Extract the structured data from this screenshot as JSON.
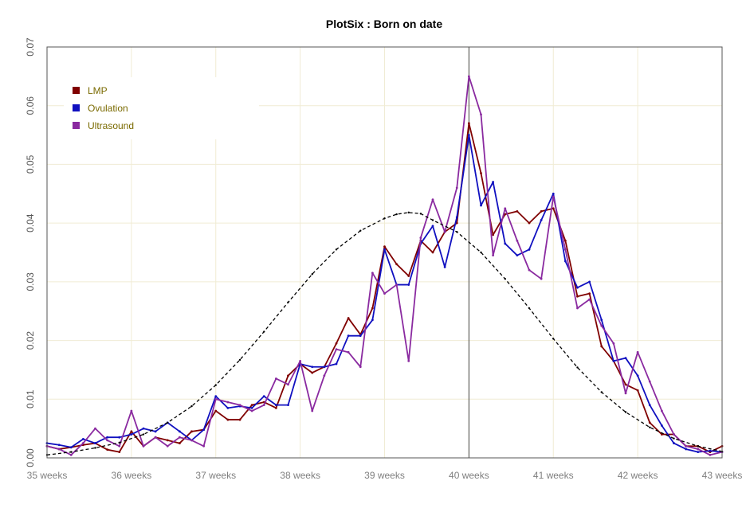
{
  "chart_data": {
    "type": "line",
    "title": "PlotSix : Born on date",
    "xlabel": "",
    "ylabel": "",
    "x_tick_labels": [
      "35 weeks",
      "36 weeks",
      "37 weeks",
      "38 weeks",
      "39 weeks",
      "40 weeks",
      "41 weeks",
      "42 weeks",
      "43 weeks"
    ],
    "x_ticks_days": [
      245,
      252,
      259,
      266,
      273,
      280,
      287,
      294,
      301
    ],
    "xlim_days": [
      245,
      301
    ],
    "y_tick_labels": [
      "0.00",
      "0.01",
      "0.02",
      "0.03",
      "0.04",
      "0.05",
      "0.06",
      "0.07"
    ],
    "y_ticks": [
      0,
      0.01,
      0.02,
      0.03,
      0.04,
      0.05,
      0.06,
      0.07
    ],
    "ylim": [
      0,
      0.07
    ],
    "grid": true,
    "grid_color": "#f0ecd4",
    "legend_position": "top-left",
    "vertical_reference_day": 280,
    "x_days": [
      245,
      246,
      247,
      248,
      249,
      250,
      251,
      252,
      253,
      254,
      255,
      256,
      257,
      258,
      259,
      260,
      261,
      262,
      263,
      264,
      265,
      266,
      267,
      268,
      269,
      270,
      271,
      272,
      273,
      274,
      275,
      276,
      277,
      278,
      279,
      280,
      281,
      282,
      283,
      284,
      285,
      286,
      287,
      288,
      289,
      290,
      291,
      292,
      293,
      294,
      295,
      296,
      297,
      298,
      299,
      300,
      301
    ],
    "series": [
      {
        "name": "LMP",
        "color": "#800000",
        "values": [
          0.002,
          0.0015,
          0.0018,
          0.0022,
          0.0025,
          0.0014,
          0.001,
          0.0045,
          0.002,
          0.0035,
          0.003,
          0.0025,
          0.0045,
          0.0048,
          0.008,
          0.0065,
          0.0065,
          0.009,
          0.0095,
          0.0085,
          0.014,
          0.016,
          0.0145,
          0.0155,
          0.0195,
          0.0238,
          0.021,
          0.0255,
          0.036,
          0.033,
          0.031,
          0.037,
          0.035,
          0.0385,
          0.04,
          0.057,
          0.0485,
          0.038,
          0.0415,
          0.042,
          0.04,
          0.042,
          0.0425,
          0.037,
          0.0275,
          0.028,
          0.019,
          0.0165,
          0.0125,
          0.0115,
          0.006,
          0.004,
          0.004,
          0.002,
          0.002,
          0.001,
          0.002
        ]
      },
      {
        "name": "Ovulation",
        "color": "#1010c0",
        "values": [
          0.0025,
          0.0022,
          0.0018,
          0.0032,
          0.0025,
          0.0035,
          0.0035,
          0.004,
          0.005,
          0.0045,
          0.006,
          0.0045,
          0.003,
          0.0048,
          0.0105,
          0.0085,
          0.0088,
          0.0085,
          0.0105,
          0.009,
          0.009,
          0.016,
          0.0155,
          0.0155,
          0.016,
          0.0208,
          0.0208,
          0.0235,
          0.0355,
          0.0295,
          0.0295,
          0.0365,
          0.0395,
          0.0325,
          0.041,
          0.055,
          0.043,
          0.047,
          0.0365,
          0.0345,
          0.0355,
          0.0405,
          0.045,
          0.0335,
          0.029,
          0.03,
          0.0235,
          0.0165,
          0.017,
          0.014,
          0.009,
          0.0055,
          0.0025,
          0.0015,
          0.001,
          0.0012,
          0.001
        ]
      },
      {
        "name": "Ultrasound",
        "color": "#8a2aa0",
        "values": [
          0.002,
          0.0015,
          0.0005,
          0.0025,
          0.005,
          0.003,
          0.002,
          0.008,
          0.002,
          0.0035,
          0.002,
          0.0035,
          0.003,
          0.002,
          0.01,
          0.0095,
          0.009,
          0.008,
          0.009,
          0.0135,
          0.0125,
          0.0165,
          0.008,
          0.014,
          0.0185,
          0.018,
          0.0155,
          0.0315,
          0.028,
          0.0295,
          0.0165,
          0.0375,
          0.044,
          0.0385,
          0.046,
          0.065,
          0.0585,
          0.0345,
          0.0425,
          0.037,
          0.032,
          0.0305,
          0.0445,
          0.0355,
          0.0255,
          0.027,
          0.0225,
          0.0195,
          0.011,
          0.018,
          0.013,
          0.008,
          0.004,
          0.002,
          0.0015,
          0.0005,
          0.001
        ]
      },
      {
        "name": "",
        "color": "#000000",
        "dashed": true,
        "x_days": [
          245,
          247,
          249,
          251,
          253,
          255,
          257,
          259,
          261,
          263,
          265,
          267,
          269,
          271,
          273,
          274,
          275,
          276,
          277,
          279,
          281,
          283,
          285,
          287,
          289,
          291,
          293,
          295,
          297,
          299,
          301
        ],
        "values": [
          0.0005,
          0.001,
          0.0017,
          0.0026,
          0.004,
          0.006,
          0.0088,
          0.0124,
          0.0167,
          0.0215,
          0.0265,
          0.0313,
          0.0355,
          0.0387,
          0.0408,
          0.0415,
          0.0418,
          0.0416,
          0.0405,
          0.0385,
          0.035,
          0.0305,
          0.0255,
          0.0203,
          0.0154,
          0.0112,
          0.0078,
          0.0052,
          0.0033,
          0.002,
          0.0011
        ]
      }
    ]
  }
}
